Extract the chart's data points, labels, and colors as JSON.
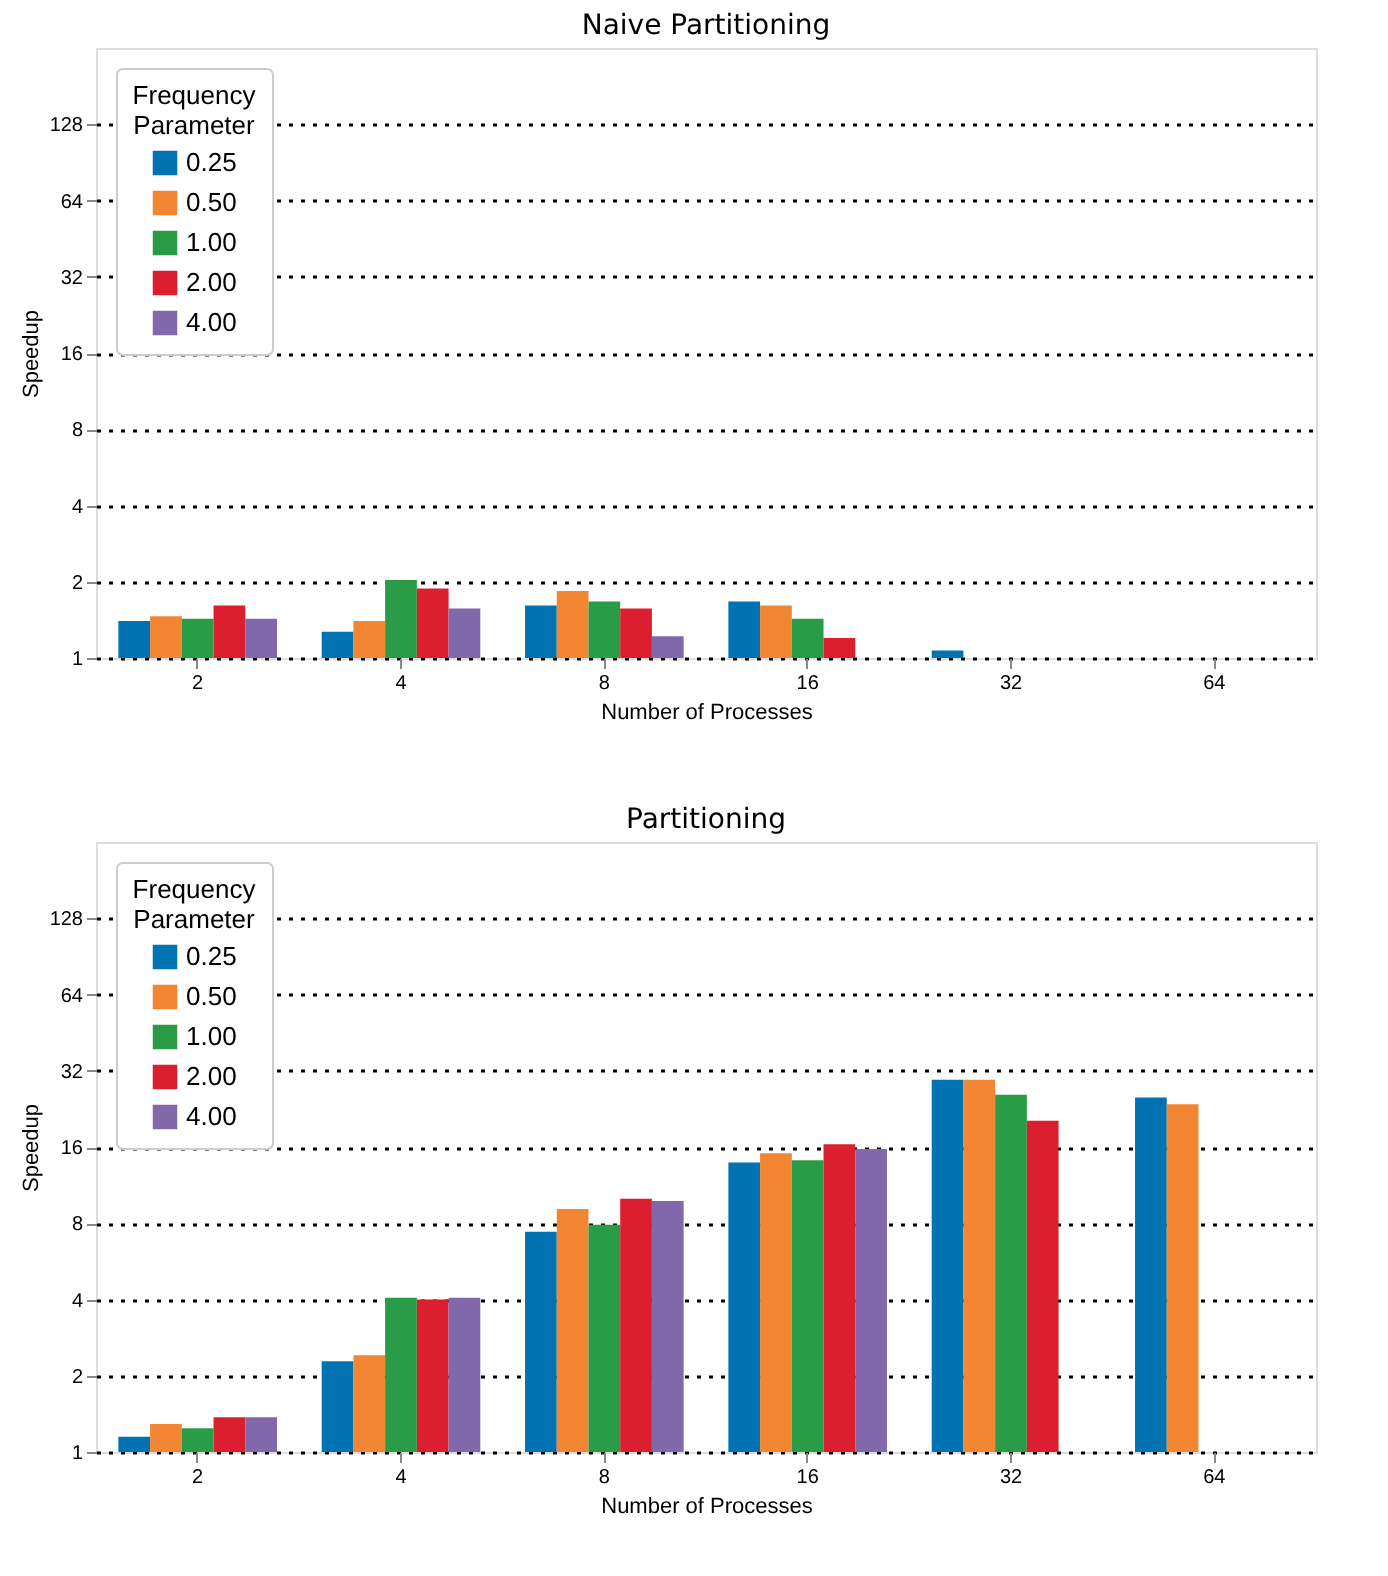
{
  "chart_data": [
    {
      "type": "bar",
      "title": "Naive Partitioning",
      "xlabel": "Number of Processes",
      "ylabel": "Speedup",
      "legend_title": "Frequency Parameter",
      "legend": "top left",
      "grid": "y",
      "log": "y",
      "categories": [
        "2",
        "4",
        "8",
        "16",
        "32",
        "64"
      ],
      "ylim": [
        1,
        256
      ],
      "yticks": [
        1,
        2,
        4,
        8,
        16,
        32,
        64,
        128
      ],
      "series": [
        {
          "name": "0.25",
          "color": "#0173b2",
          "values": [
            1.4,
            1.27,
            1.61,
            1.67,
            1.07,
            null
          ]
        },
        {
          "name": "0.50",
          "color": "#f28632",
          "values": [
            1.46,
            1.4,
            1.84,
            1.61,
            null,
            null
          ]
        },
        {
          "name": "1.00",
          "color": "#2a9c48",
          "values": [
            1.43,
            2.03,
            1.67,
            1.43,
            null,
            null
          ]
        },
        {
          "name": "2.00",
          "color": "#dc1f2f",
          "values": [
            1.61,
            1.88,
            1.57,
            1.2,
            null,
            null
          ]
        },
        {
          "name": "4.00",
          "color": "#8168aa",
          "values": [
            1.43,
            1.57,
            1.22,
            null,
            null,
            null
          ]
        }
      ]
    },
    {
      "type": "bar",
      "title": "Partitioning",
      "xlabel": "Number of Processes",
      "ylabel": "Speedup",
      "legend_title": "Frequency Parameter",
      "legend": "top left",
      "grid": "y",
      "log": "y",
      "categories": [
        "2",
        "4",
        "8",
        "16",
        "32",
        "64"
      ],
      "ylim": [
        1,
        256
      ],
      "yticks": [
        1,
        2,
        4,
        8,
        16,
        32,
        64,
        128
      ],
      "series": [
        {
          "name": "0.25",
          "color": "#0173b2",
          "values": [
            1.15,
            2.28,
            7.4,
            13.9,
            29.5,
            25.1
          ]
        },
        {
          "name": "0.50",
          "color": "#f28632",
          "values": [
            1.29,
            2.41,
            9.1,
            15.1,
            29.5,
            23.6
          ]
        },
        {
          "name": "1.00",
          "color": "#2a9c48",
          "values": [
            1.24,
            4.06,
            7.9,
            14.2,
            25.7,
            null
          ]
        },
        {
          "name": "2.00",
          "color": "#dc1f2f",
          "values": [
            1.37,
            4.0,
            10.0,
            16.4,
            20.3,
            null
          ]
        },
        {
          "name": "4.00",
          "color": "#8168aa",
          "values": [
            1.37,
            4.06,
            9.8,
            15.7,
            null,
            null
          ]
        }
      ]
    }
  ]
}
